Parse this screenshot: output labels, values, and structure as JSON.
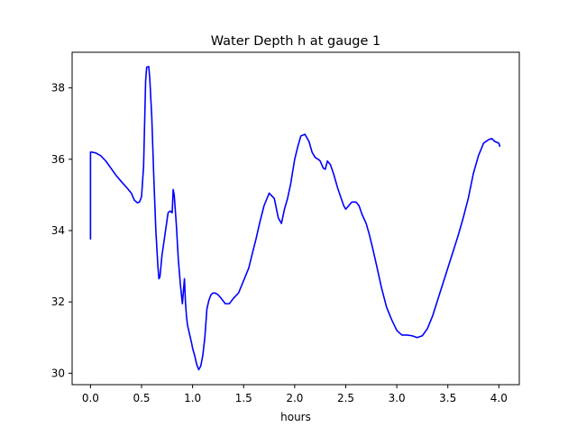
{
  "chart_data": {
    "type": "line",
    "title": "Water Depth h at gauge 1",
    "xlabel": "hours",
    "ylabel": "",
    "xlim": [
      -0.18,
      4.2
    ],
    "ylim": [
      29.68,
      39.0
    ],
    "xticks": [
      0.0,
      0.5,
      1.0,
      1.5,
      2.0,
      2.5,
      3.0,
      3.5,
      4.0
    ],
    "xtick_labels": [
      "0.0",
      "0.5",
      "1.0",
      "1.5",
      "2.0",
      "2.5",
      "3.0",
      "3.5",
      "4.0"
    ],
    "yticks": [
      30,
      32,
      34,
      36,
      38
    ],
    "ytick_labels": [
      "30",
      "32",
      "34",
      "36",
      "38"
    ],
    "grid": false,
    "series": [
      {
        "color": "#0000ff",
        "x": [
          0.0,
          0.0,
          0.01,
          0.05,
          0.1,
          0.15,
          0.2,
          0.25,
          0.3,
          0.35,
          0.4,
          0.43,
          0.46,
          0.48,
          0.5,
          0.52,
          0.54,
          0.55,
          0.57,
          0.58,
          0.6,
          0.62,
          0.64,
          0.66,
          0.67,
          0.68,
          0.7,
          0.73,
          0.76,
          0.78,
          0.8,
          0.81,
          0.82,
          0.83,
          0.84,
          0.85,
          0.86,
          0.88,
          0.9,
          0.92,
          0.93,
          0.94,
          0.95,
          0.97,
          0.99,
          1.0,
          1.02,
          1.04,
          1.06,
          1.08,
          1.1,
          1.12,
          1.14,
          1.16,
          1.18,
          1.2,
          1.22,
          1.25,
          1.28,
          1.32,
          1.36,
          1.4,
          1.45,
          1.5,
          1.55,
          1.58,
          1.62,
          1.66,
          1.7,
          1.75,
          1.8,
          1.84,
          1.87,
          1.9,
          1.93,
          1.96,
          2.0,
          2.03,
          2.06,
          2.1,
          2.14,
          2.17,
          2.2,
          2.23,
          2.25,
          2.28,
          2.3,
          2.32,
          2.35,
          2.38,
          2.4,
          2.42,
          2.45,
          2.48,
          2.5,
          2.53,
          2.56,
          2.6,
          2.63,
          2.66,
          2.7,
          2.73,
          2.76,
          2.8,
          2.85,
          2.9,
          2.95,
          3.0,
          3.05,
          3.1,
          3.15,
          3.2,
          3.25,
          3.3,
          3.35,
          3.4,
          3.45,
          3.5,
          3.55,
          3.6,
          3.65,
          3.7,
          3.75,
          3.8,
          3.85,
          3.9,
          3.93,
          3.96,
          4.0,
          4.01
        ],
        "y": [
          33.75,
          36.2,
          36.2,
          36.18,
          36.1,
          35.95,
          35.75,
          35.55,
          35.38,
          35.22,
          35.05,
          34.85,
          34.78,
          34.8,
          34.95,
          35.8,
          38.2,
          38.58,
          38.6,
          38.3,
          37.2,
          35.5,
          34.0,
          33.0,
          32.65,
          32.7,
          33.3,
          33.9,
          34.5,
          34.55,
          34.5,
          35.15,
          35.0,
          34.6,
          34.2,
          33.7,
          33.2,
          32.5,
          31.95,
          32.65,
          32.0,
          31.6,
          31.35,
          31.1,
          30.85,
          30.7,
          30.5,
          30.25,
          30.1,
          30.2,
          30.5,
          31.0,
          31.8,
          32.05,
          32.2,
          32.25,
          32.25,
          32.2,
          32.1,
          31.95,
          31.95,
          32.1,
          32.25,
          32.6,
          32.95,
          33.3,
          33.75,
          34.25,
          34.7,
          35.05,
          34.9,
          34.35,
          34.2,
          34.6,
          34.9,
          35.3,
          36.0,
          36.35,
          36.65,
          36.7,
          36.5,
          36.2,
          36.05,
          36.0,
          35.95,
          35.75,
          35.72,
          35.95,
          35.85,
          35.6,
          35.4,
          35.2,
          34.95,
          34.7,
          34.6,
          34.7,
          34.8,
          34.8,
          34.7,
          34.45,
          34.2,
          33.9,
          33.55,
          33.05,
          32.4,
          31.85,
          31.5,
          31.2,
          31.07,
          31.07,
          31.05,
          31.0,
          31.05,
          31.25,
          31.6,
          32.05,
          32.5,
          32.95,
          33.4,
          33.85,
          34.35,
          34.9,
          35.6,
          36.1,
          36.45,
          36.55,
          36.58,
          36.5,
          36.45,
          36.35
        ]
      }
    ]
  }
}
